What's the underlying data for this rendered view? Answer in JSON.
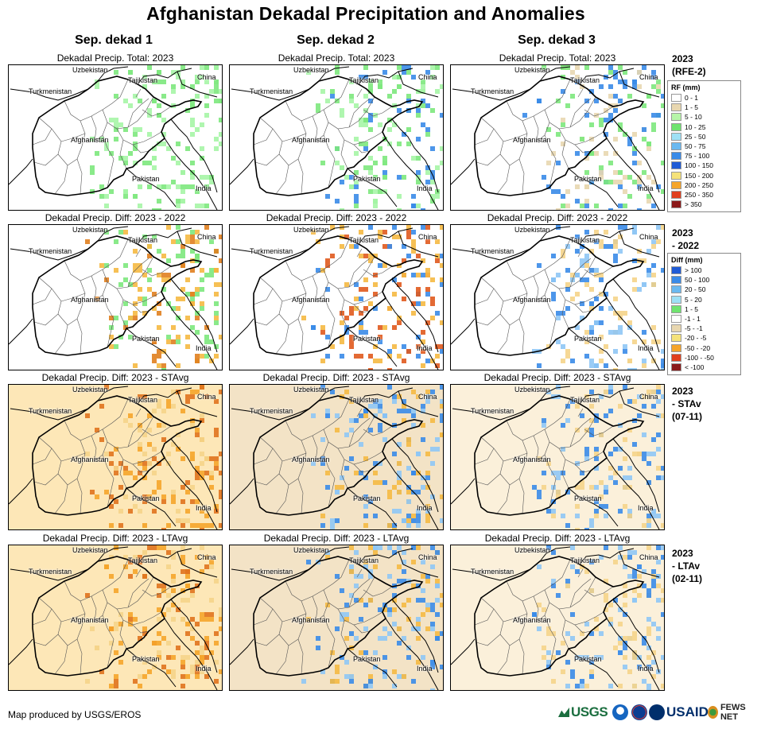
{
  "title": "Afghanistan Dekadal Precipitation and Anomalies",
  "columns": [
    "Sep. dekad 1",
    "Sep. dekad 2",
    "Sep. dekad 3"
  ],
  "rows": [
    {
      "panel_title": "Dekadal Precip. Total: 2023",
      "row_label": "2023\n(RFE-2)",
      "panels": [
        {
          "tint": "#ffffff",
          "accents": [
            "#7de87d",
            "#a6f5a6"
          ]
        },
        {
          "tint": "#ffffff",
          "accents": [
            "#7de87d",
            "#3a8be8",
            "#a6f5a6"
          ]
        },
        {
          "tint": "#ffffff",
          "accents": [
            "#7de87d",
            "#3a8be8",
            "#e8d7b0"
          ]
        }
      ]
    },
    {
      "panel_title": "Dekadal Precip. Diff: 2023 - 2022",
      "row_label": "2023\n- 2022",
      "panels": [
        {
          "tint": "#ffffff",
          "accents": [
            "#f5b942",
            "#e07f1f",
            "#7de87d"
          ]
        },
        {
          "tint": "#ffffff",
          "accents": [
            "#e05a1e",
            "#f5b942",
            "#3a8be8"
          ]
        },
        {
          "tint": "#ffffff",
          "accents": [
            "#8fc7f5",
            "#3a8be8",
            "#f5d48a"
          ]
        }
      ]
    },
    {
      "panel_title": "Dekadal Precip. Diff: 2023 - STAvg",
      "row_label": "2023\n- STAv\n(07-11)",
      "panels": [
        {
          "tint": "#fde7b7",
          "accents": [
            "#f5a52b",
            "#e0731e",
            "#f5d48a"
          ]
        },
        {
          "tint": "#f3e3c6",
          "accents": [
            "#f5b942",
            "#3a8be8",
            "#8fc7f5"
          ]
        },
        {
          "tint": "#fbf0da",
          "accents": [
            "#8fc7f5",
            "#3a8be8",
            "#f5d48a"
          ]
        }
      ]
    },
    {
      "panel_title": "Dekadal Precip. Diff: 2023 - LTAvg",
      "row_label": "2023\n- LTAv\n(02-11)",
      "panels": [
        {
          "tint": "#fde7b7",
          "accents": [
            "#f5a52b",
            "#e0731e",
            "#f5d48a"
          ]
        },
        {
          "tint": "#f3e3c6",
          "accents": [
            "#f5b942",
            "#3a8be8",
            "#8fc7f5"
          ]
        },
        {
          "tint": "#fbf0da",
          "accents": [
            "#8fc7f5",
            "#3a8be8",
            "#f5d48a"
          ]
        }
      ]
    }
  ],
  "map_labels": {
    "uzbekistan": "Uzbekistan",
    "tajikistan": "Tajikistan",
    "china": "China",
    "turkmenistan": "Turkmenistan",
    "afghanistan": "Afghanistan",
    "pakistan": "Pakistan",
    "india": "India"
  },
  "legend_rf": {
    "title": "RF (mm)",
    "items": [
      {
        "label": "0 - 1",
        "color": "#ffffff"
      },
      {
        "label": "1 - 5",
        "color": "#e8d7b0"
      },
      {
        "label": "5 - 10",
        "color": "#b6f5a8"
      },
      {
        "label": "10 - 25",
        "color": "#6fe36f"
      },
      {
        "label": "25 - 50",
        "color": "#9ee0f5"
      },
      {
        "label": "50 - 75",
        "color": "#6bb9f0"
      },
      {
        "label": "75 - 100",
        "color": "#3a8be8"
      },
      {
        "label": "100 - 150",
        "color": "#1f5bd6"
      },
      {
        "label": "150 - 200",
        "color": "#f5e27a"
      },
      {
        "label": "200 - 250",
        "color": "#f5a52b"
      },
      {
        "label": "250 - 350",
        "color": "#e0401e"
      },
      {
        "label": "> 350",
        "color": "#8b1a1a"
      }
    ]
  },
  "legend_diff": {
    "title": "Diff (mm)",
    "items": [
      {
        "label": "> 100",
        "color": "#1f5bd6"
      },
      {
        "label": "50 - 100",
        "color": "#3a8be8"
      },
      {
        "label": "20 - 50",
        "color": "#6bb9f0"
      },
      {
        "label": "5 - 20",
        "color": "#9ee0f5"
      },
      {
        "label": "1 - 5",
        "color": "#6fe36f"
      },
      {
        "label": "-1 - 1",
        "color": "#ffffff"
      },
      {
        "label": "-5 - -1",
        "color": "#e8d7b0"
      },
      {
        "label": "-20 - -5",
        "color": "#f5e27a"
      },
      {
        "label": "-50 - -20",
        "color": "#f5a52b"
      },
      {
        "label": "-100 - -50",
        "color": "#e0401e"
      },
      {
        "label": "< -100",
        "color": "#8b1a1a"
      }
    ]
  },
  "credit": "Map produced by USGS/EROS",
  "logos": {
    "usgs": "USGS",
    "usaid": "USAID",
    "fews": "FEWS NET"
  }
}
